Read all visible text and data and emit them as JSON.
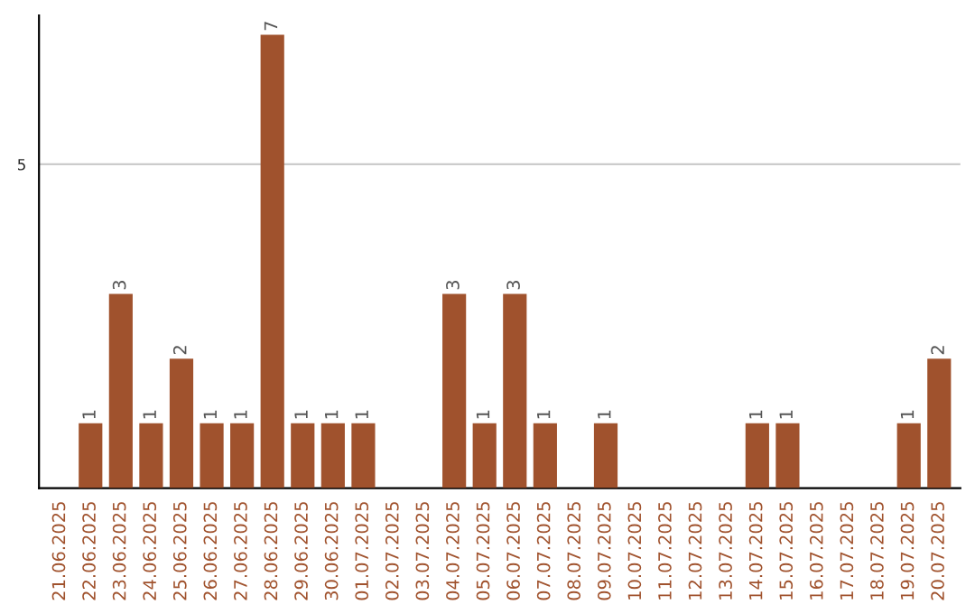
{
  "chart_data": {
    "type": "bar",
    "categories": [
      "21.06.2025",
      "22.06.2025",
      "23.06.2025",
      "24.06.2025",
      "25.06.2025",
      "26.06.2025",
      "27.06.2025",
      "28.06.2025",
      "29.06.2025",
      "30.06.2025",
      "01.07.2025",
      "02.07.2025",
      "03.07.2025",
      "04.07.2025",
      "05.07.2025",
      "06.07.2025",
      "07.07.2025",
      "08.07.2025",
      "09.07.2025",
      "10.07.2025",
      "11.07.2025",
      "12.07.2025",
      "13.07.2025",
      "14.07.2025",
      "15.07.2025",
      "16.07.2025",
      "17.07.2025",
      "18.07.2025",
      "19.07.2025",
      "20.07.2025"
    ],
    "values": [
      0,
      1,
      3,
      1,
      2,
      1,
      1,
      7,
      1,
      1,
      1,
      0,
      0,
      3,
      1,
      3,
      1,
      0,
      1,
      0,
      0,
      0,
      0,
      1,
      1,
      0,
      0,
      0,
      1,
      2
    ],
    "value_labels": [
      null,
      "1",
      "3",
      "1",
      "2",
      "1",
      "1",
      "7",
      "1",
      "1",
      "1",
      null,
      null,
      "3",
      "1",
      "3",
      "1",
      null,
      "1",
      null,
      null,
      null,
      null,
      "1",
      "1",
      null,
      null,
      null,
      "1",
      "2"
    ],
    "color": "#a0522d",
    "ylim": [
      0,
      7.3
    ],
    "yticks": [
      5
    ],
    "grid": "y",
    "legend": false
  }
}
